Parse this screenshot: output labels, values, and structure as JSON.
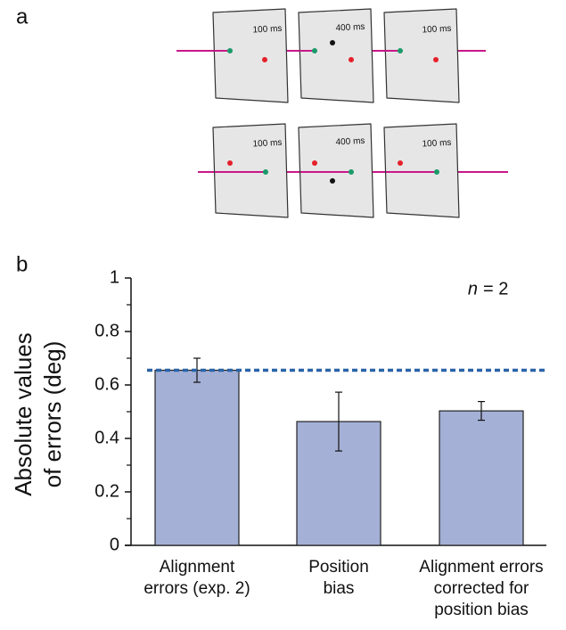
{
  "panel_a": {
    "label": "a",
    "rows": [
      {
        "frames": [
          "100 ms",
          "400 ms",
          "100 ms"
        ]
      },
      {
        "frames": [
          "100 ms",
          "400 ms",
          "100 ms"
        ]
      }
    ]
  },
  "chart_data": {
    "type": "bar",
    "panel_label": "b",
    "ylabel": [
      "Absolute values",
      "of errors (deg)"
    ],
    "categories": [
      [
        "Alignment",
        "errors (exp. 2)"
      ],
      [
        "Position",
        "bias"
      ],
      [
        "Alignment errors",
        "corrected for",
        "position bias"
      ]
    ],
    "values": [
      0.655,
      0.463,
      0.503
    ],
    "errors": [
      0.045,
      0.11,
      0.035
    ],
    "color": "#a4b0d6",
    "reference_line": 0.655,
    "reference_color": "#2a64a8",
    "annotation": {
      "symbol": "n",
      "text": "= 2"
    },
    "ylim": [
      0,
      1
    ],
    "yticks": [
      0,
      0.2,
      0.4,
      0.6,
      0.8,
      1
    ],
    "yminorticks": [
      0.1,
      0.3,
      0.5,
      0.7,
      0.9
    ]
  }
}
